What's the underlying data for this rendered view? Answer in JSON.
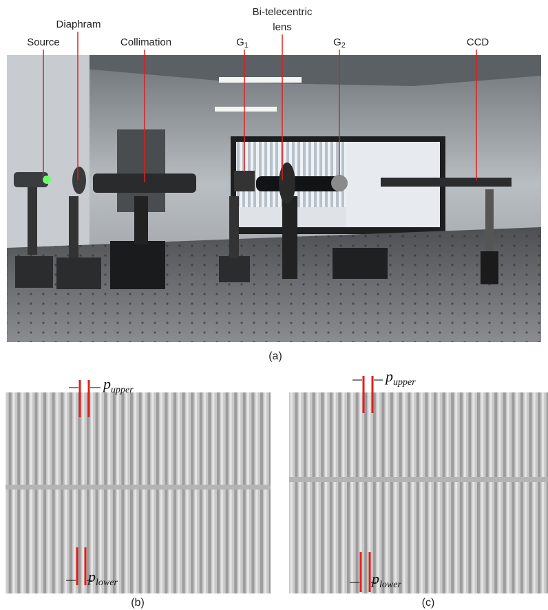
{
  "figure": {
    "photo_labels": [
      {
        "text": "Source"
      },
      {
        "text": "Diaphram"
      },
      {
        "text": "Collimation"
      },
      {
        "text": "G",
        "sub": "1"
      },
      {
        "lines": [
          "Bi-telecentric",
          "lens"
        ]
      },
      {
        "text": "G",
        "sub": "2"
      },
      {
        "text": "CCD"
      }
    ],
    "panels": {
      "a": "(a)",
      "b": {
        "caption": "(b)",
        "upper": {
          "text": "p",
          "sub": "upper"
        },
        "lower": {
          "text": "p",
          "sub": "lower"
        }
      },
      "c": {
        "caption": "(c)",
        "upper": {
          "text": "p",
          "sub": "upper"
        },
        "lower": {
          "text": "p",
          "sub": "lower"
        }
      }
    }
  }
}
